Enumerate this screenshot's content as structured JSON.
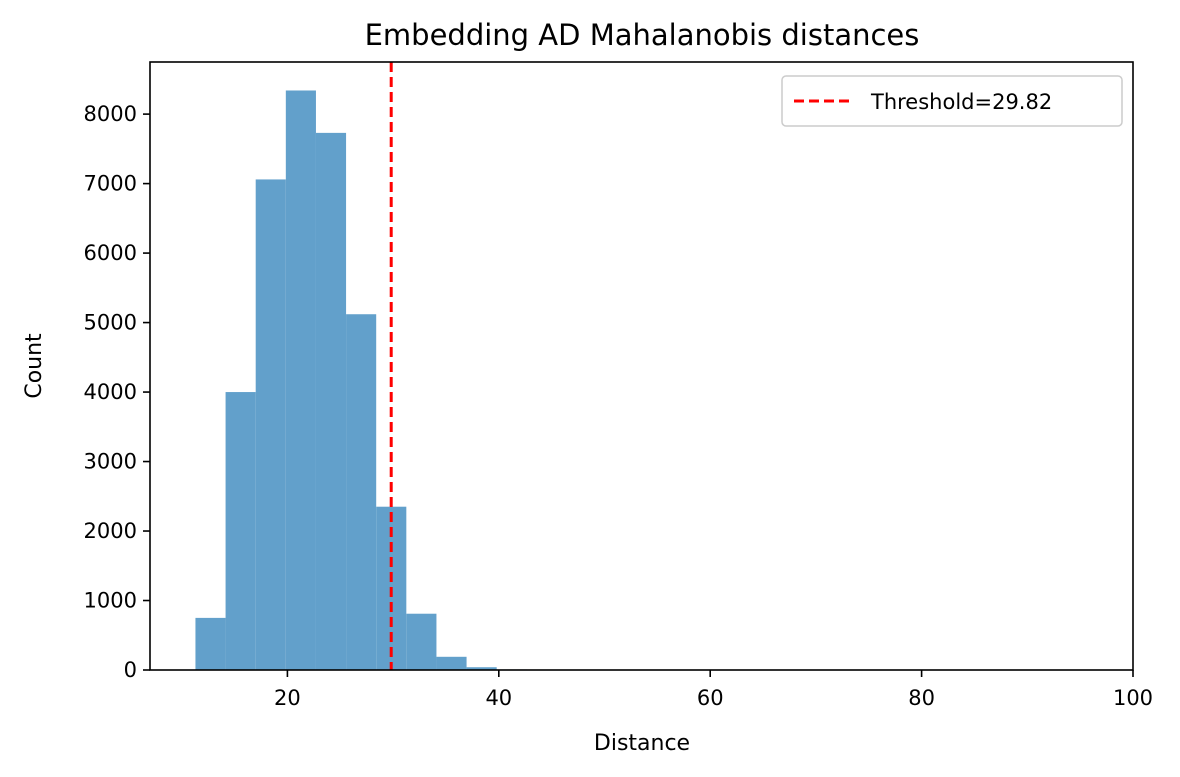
{
  "chart_data": {
    "type": "bar",
    "title": "Embedding AD Mahalanobis distances",
    "xlabel": "Distance",
    "ylabel": "Count",
    "xlim": [
      7,
      100
    ],
    "ylim": [
      0,
      8750
    ],
    "xticks": [
      20,
      40,
      60,
      80,
      100
    ],
    "yticks": [
      0,
      1000,
      2000,
      3000,
      4000,
      5000,
      6000,
      7000,
      8000
    ],
    "bar_color": "#62a0cb",
    "bins": [
      {
        "x0": 11.3,
        "x1": 14.15,
        "count": 750
      },
      {
        "x0": 14.15,
        "x1": 17.0,
        "count": 4000
      },
      {
        "x0": 17.0,
        "x1": 19.85,
        "count": 7060
      },
      {
        "x0": 19.85,
        "x1": 22.7,
        "count": 8340
      },
      {
        "x0": 22.7,
        "x1": 25.55,
        "count": 7730
      },
      {
        "x0": 25.55,
        "x1": 28.4,
        "count": 5120
      },
      {
        "x0": 28.4,
        "x1": 31.25,
        "count": 2350
      },
      {
        "x0": 31.25,
        "x1": 34.1,
        "count": 810
      },
      {
        "x0": 34.1,
        "x1": 36.95,
        "count": 190
      },
      {
        "x0": 36.95,
        "x1": 39.8,
        "count": 40
      },
      {
        "x0": 39.8,
        "x1": 42.65,
        "count": 8
      },
      {
        "x0": 42.65,
        "x1": 45.5,
        "count": 2
      }
    ],
    "threshold": {
      "value": 29.82,
      "label": "Threshold=29.82",
      "color": "#ff0000"
    },
    "legend_position": "top-right",
    "grid": false
  }
}
